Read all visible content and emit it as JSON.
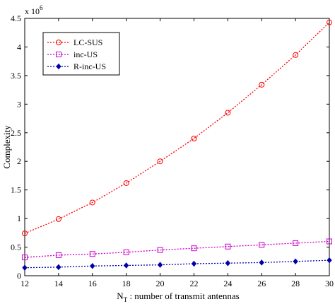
{
  "chart_data": {
    "type": "line",
    "xlabel_main": "N",
    "xlabel_sub": "T",
    "xlabel_rest": " : number of transmit antennas",
    "ylabel": "Complexity",
    "y_multiplier_base": "x 10",
    "y_multiplier_exp": "6",
    "xlim": [
      12,
      30
    ],
    "ylim": [
      0,
      4.5
    ],
    "xticks": [
      "12",
      "14",
      "16",
      "18",
      "20",
      "22",
      "24",
      "26",
      "28",
      "30"
    ],
    "yticks": [
      "0",
      "0.5",
      "1",
      "1.5",
      "2",
      "2.5",
      "3",
      "3.5",
      "4",
      "4.5"
    ],
    "grid": false,
    "legend_position": "top-left",
    "x": [
      12,
      14,
      16,
      18,
      20,
      22,
      24,
      26,
      28,
      30
    ],
    "series": [
      {
        "name": "LC-SUS",
        "color": "#ff0000",
        "marker": "circle",
        "values": [
          0.74,
          0.99,
          1.28,
          1.62,
          2.0,
          2.4,
          2.85,
          3.34,
          3.86,
          4.43
        ]
      },
      {
        "name": "inc-US",
        "color": "#cc00cc",
        "marker": "square",
        "values": [
          0.32,
          0.36,
          0.38,
          0.41,
          0.45,
          0.48,
          0.51,
          0.54,
          0.57,
          0.6
        ]
      },
      {
        "name": "R-inc-US",
        "color": "#0000aa",
        "marker": "diamond",
        "values": [
          0.14,
          0.15,
          0.17,
          0.18,
          0.19,
          0.21,
          0.22,
          0.23,
          0.25,
          0.27
        ]
      }
    ]
  }
}
